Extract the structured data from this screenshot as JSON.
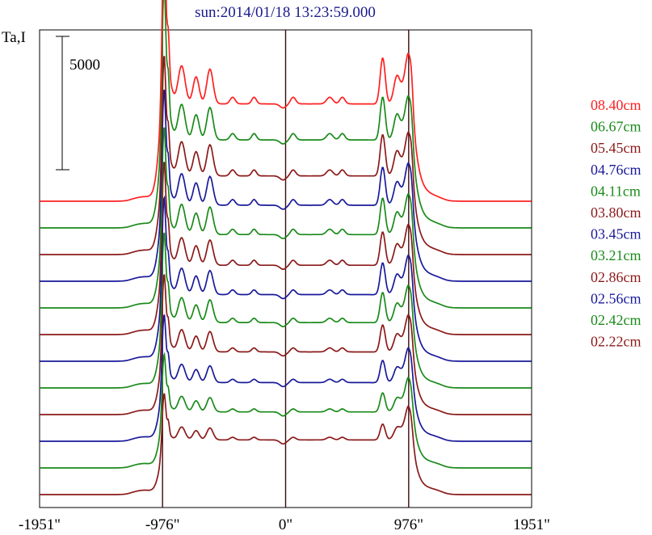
{
  "chart_data": {
    "type": "line",
    "title": "sun:2014/01/18 13:23:59.000",
    "ylabel": "Ta,I",
    "xlabel": "",
    "scale_bar_value": 5000,
    "scale_bar_label": "5000",
    "xlim": [
      -1951,
      1951
    ],
    "x_ticks": [
      -1951,
      -976,
      0,
      976,
      1951
    ],
    "x_tick_labels": [
      "-1951\"",
      "-976\"",
      "0\"",
      "976\"",
      "1951\""
    ],
    "vertical_lines": [
      -976,
      0,
      976
    ],
    "grid": false,
    "legend_position": "right",
    "trace_spacing": 1000,
    "series": [
      {
        "name": "08.40cm",
        "color": "#ff2020",
        "offset": 11000,
        "disk": 3650,
        "peak_left": 5600,
        "peak_right": 3450,
        "bump": 1450,
        "plage": 1000
      },
      {
        "name": "06.67cm",
        "color": "#1a8a1a",
        "offset": 10000,
        "disk": 3300,
        "peak_left": 5150,
        "peak_right": 3050,
        "bump": 1350,
        "plage": 950
      },
      {
        "name": "05.45cm",
        "color": "#8b1a1a",
        "offset": 9000,
        "disk": 2950,
        "peak_left": 4100,
        "peak_right": 2900,
        "bump": 1300,
        "plage": 900
      },
      {
        "name": "04.76cm",
        "color": "#1a1a9a",
        "offset": 8000,
        "disk": 2850,
        "peak_left": 3950,
        "peak_right": 2800,
        "bump": 1200,
        "plage": 850
      },
      {
        "name": "04.11cm",
        "color": "#1a8a1a",
        "offset": 7000,
        "disk": 2750,
        "peak_left": 3700,
        "peak_right": 2700,
        "bump": 1150,
        "plage": 800
      },
      {
        "name": "03.80cm",
        "color": "#8b1a1a",
        "offset": 6000,
        "disk": 2600,
        "peak_left": 3550,
        "peak_right": 2650,
        "bump": 1050,
        "plage": 750
      },
      {
        "name": "03.45cm",
        "color": "#1a1a9a",
        "offset": 5000,
        "disk": 2500,
        "peak_left": 3350,
        "peak_right": 2550,
        "bump": 1000,
        "plage": 700
      },
      {
        "name": "03.21cm",
        "color": "#1a8a1a",
        "offset": 4000,
        "disk": 2450,
        "peak_left": 3150,
        "peak_right": 2450,
        "bump": 950,
        "plage": 650
      },
      {
        "name": "02.86cm",
        "color": "#8b1a1a",
        "offset": 3000,
        "disk": 2350,
        "peak_left": 2800,
        "peak_right": 2400,
        "bump": 850,
        "plage": 600
      },
      {
        "name": "02.56cm",
        "color": "#1a1a9a",
        "offset": 2000,
        "disk": 2200,
        "peak_left": 2500,
        "peak_right": 2250,
        "bump": 700,
        "plage": 500
      },
      {
        "name": "02.42cm",
        "color": "#1a8a1a",
        "offset": 1000,
        "disk": 2100,
        "peak_left": 2200,
        "peak_right": 2200,
        "bump": 600,
        "plage": 450
      },
      {
        "name": "02.22cm",
        "color": "#8b1a1a",
        "offset": 0,
        "disk": 2050,
        "peak_left": 1900,
        "peak_right": 2150,
        "bump": 500,
        "plage": 400
      }
    ]
  }
}
